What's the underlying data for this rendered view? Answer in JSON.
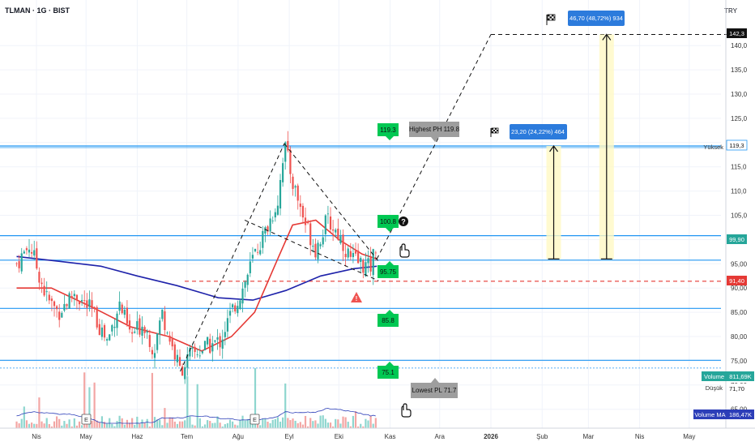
{
  "header": {
    "title": "TLMAN · 1G · BIST",
    "currency": "TRY"
  },
  "colors": {
    "up": "#26a69a",
    "down": "#ef5350",
    "ma_fast": "#e53935",
    "ma_slow": "#1e22aa",
    "level": "#2196f3",
    "green_label": "#00c853",
    "gray_label": "#9e9e9e",
    "blue_label": "#2c7bdc",
    "dashed_red": "#e53935"
  },
  "chart_data": {
    "type": "candlestick",
    "symbol": "TLMAN",
    "interval": "1G",
    "exchange": "BIST",
    "x_labels": [
      "Nis",
      "May",
      "Haz",
      "Tem",
      "Ağu",
      "Eyl",
      "Eki",
      "Kas",
      "Ara",
      "2026",
      "Şub",
      "Mar",
      "Nis",
      "May"
    ],
    "y_ticks": [
      "65,00",
      "70,00",
      "75,00",
      "80,00",
      "85,00",
      "90,00",
      "95,00",
      "100,0",
      "105,0",
      "110,0",
      "115,0",
      "120,0",
      "125,0",
      "130,0",
      "135,0",
      "140,0"
    ],
    "close_path": [
      {
        "date": "2025-03-20",
        "v": 95
      },
      {
        "date": "2025-03-28",
        "v": 99
      },
      {
        "date": "2025-04-07",
        "v": 88
      },
      {
        "date": "2025-04-14",
        "v": 85
      },
      {
        "date": "2025-04-24",
        "v": 89
      },
      {
        "date": "2025-05-05",
        "v": 85
      },
      {
        "date": "2025-05-14",
        "v": 79
      },
      {
        "date": "2025-05-21",
        "v": 87
      },
      {
        "date": "2025-05-28",
        "v": 80
      },
      {
        "date": "2025-06-05",
        "v": 83
      },
      {
        "date": "2025-06-11",
        "v": 77
      },
      {
        "date": "2025-06-16",
        "v": 85
      },
      {
        "date": "2025-06-23",
        "v": 77
      },
      {
        "date": "2025-06-27",
        "v": 73
      },
      {
        "date": "2025-07-03",
        "v": 76
      },
      {
        "date": "2025-07-14",
        "v": 78
      },
      {
        "date": "2025-07-21",
        "v": 79
      },
      {
        "date": "2025-07-28",
        "v": 85
      },
      {
        "date": "2025-08-04",
        "v": 90
      },
      {
        "date": "2025-08-11",
        "v": 97
      },
      {
        "date": "2025-08-18",
        "v": 102
      },
      {
        "date": "2025-08-25",
        "v": 108
      },
      {
        "date": "2025-08-29",
        "v": 119.8
      },
      {
        "date": "2025-09-03",
        "v": 112
      },
      {
        "date": "2025-09-10",
        "v": 104
      },
      {
        "date": "2025-09-17",
        "v": 98
      },
      {
        "date": "2025-09-24",
        "v": 104
      },
      {
        "date": "2025-10-01",
        "v": 101
      },
      {
        "date": "2025-10-08",
        "v": 96
      },
      {
        "date": "2025-10-15",
        "v": 95
      },
      {
        "date": "2025-10-20",
        "v": 94
      },
      {
        "date": "2025-10-24",
        "v": 99.9
      }
    ],
    "ma_fast": [
      {
        "date": "2025-03-20",
        "v": 90
      },
      {
        "date": "2025-04-10",
        "v": 90
      },
      {
        "date": "2025-05-05",
        "v": 86
      },
      {
        "date": "2025-05-28",
        "v": 82
      },
      {
        "date": "2025-06-20",
        "v": 80
      },
      {
        "date": "2025-07-10",
        "v": 77
      },
      {
        "date": "2025-07-28",
        "v": 80
      },
      {
        "date": "2025-08-11",
        "v": 85
      },
      {
        "date": "2025-08-25",
        "v": 96
      },
      {
        "date": "2025-09-03",
        "v": 103
      },
      {
        "date": "2025-09-17",
        "v": 104
      },
      {
        "date": "2025-10-01",
        "v": 100
      },
      {
        "date": "2025-10-15",
        "v": 97
      },
      {
        "date": "2025-10-24",
        "v": 96
      }
    ],
    "ma_slow": [
      {
        "date": "2025-03-20",
        "v": 96.5
      },
      {
        "date": "2025-04-15",
        "v": 95.5
      },
      {
        "date": "2025-05-10",
        "v": 94.5
      },
      {
        "date": "2025-06-01",
        "v": 92.5
      },
      {
        "date": "2025-06-25",
        "v": 90.5
      },
      {
        "date": "2025-07-20",
        "v": 88
      },
      {
        "date": "2025-08-10",
        "v": 87.5
      },
      {
        "date": "2025-08-30",
        "v": 89.5
      },
      {
        "date": "2025-09-20",
        "v": 92.5
      },
      {
        "date": "2025-10-10",
        "v": 94
      },
      {
        "date": "2025-10-24",
        "v": 94.5
      }
    ],
    "horizontal_levels": [
      100.8,
      95.75,
      85.8,
      75.1,
      119.3
    ],
    "dashed_level": 91.4,
    "pattern_lines": [
      {
        "from": {
          "date": "2025-06-27",
          "v": 72.8
        },
        "to": {
          "date": "2025-08-29",
          "v": 119.8
        }
      },
      {
        "from": {
          "date": "2025-08-29",
          "v": 119.8
        },
        "to": {
          "date": "2025-10-25",
          "v": 95.5
        }
      },
      {
        "from": {
          "date": "2025-08-05",
          "v": 104
        },
        "to": {
          "date": "2025-10-25",
          "v": 91.5
        }
      },
      {
        "from": {
          "date": "2025-10-24",
          "v": 96
        },
        "to": {
          "date": "2026-01-01",
          "v": 142.3
        }
      },
      {
        "from": {
          "date": "2026-01-01",
          "v": 142.3
        },
        "to": {
          "date": "2026-05-31",
          "v": 142.3
        }
      }
    ],
    "targets": [
      {
        "label": "23,20 (24,22%) 464",
        "from": 96,
        "to": 119.3,
        "date": "2026-02-08"
      },
      {
        "label": "46,70 (48,72%) 934",
        "from": 96,
        "to": 142.3,
        "date": "2026-03-12"
      }
    ],
    "volume_overlay": {
      "volume": "811,69K",
      "volume_ma": "186,47K"
    },
    "stats": {
      "high": "119,3",
      "low": "71,70",
      "last": "99,90",
      "dashed": "91,40",
      "target": "142,3"
    }
  },
  "labels": {
    "green": [
      "119.3",
      "100.8",
      "95.75",
      "85.8",
      "75.1"
    ],
    "gray_top": "Highest PH 119.8",
    "gray_bottom": "Lowest PL 71.7",
    "yuksek": "Yüksek",
    "dusuk": "Düşük",
    "volume": "Volume",
    "volume_ma": "Volume MA",
    "earnings": "E",
    "question": "?",
    "warning": "!"
  },
  "price_tags": {
    "target": "142,3",
    "high": "119,3",
    "last": "99,90",
    "dashed": "91,40",
    "volume": "811,69K",
    "low": "71,70",
    "volume_ma": "186,47K"
  }
}
